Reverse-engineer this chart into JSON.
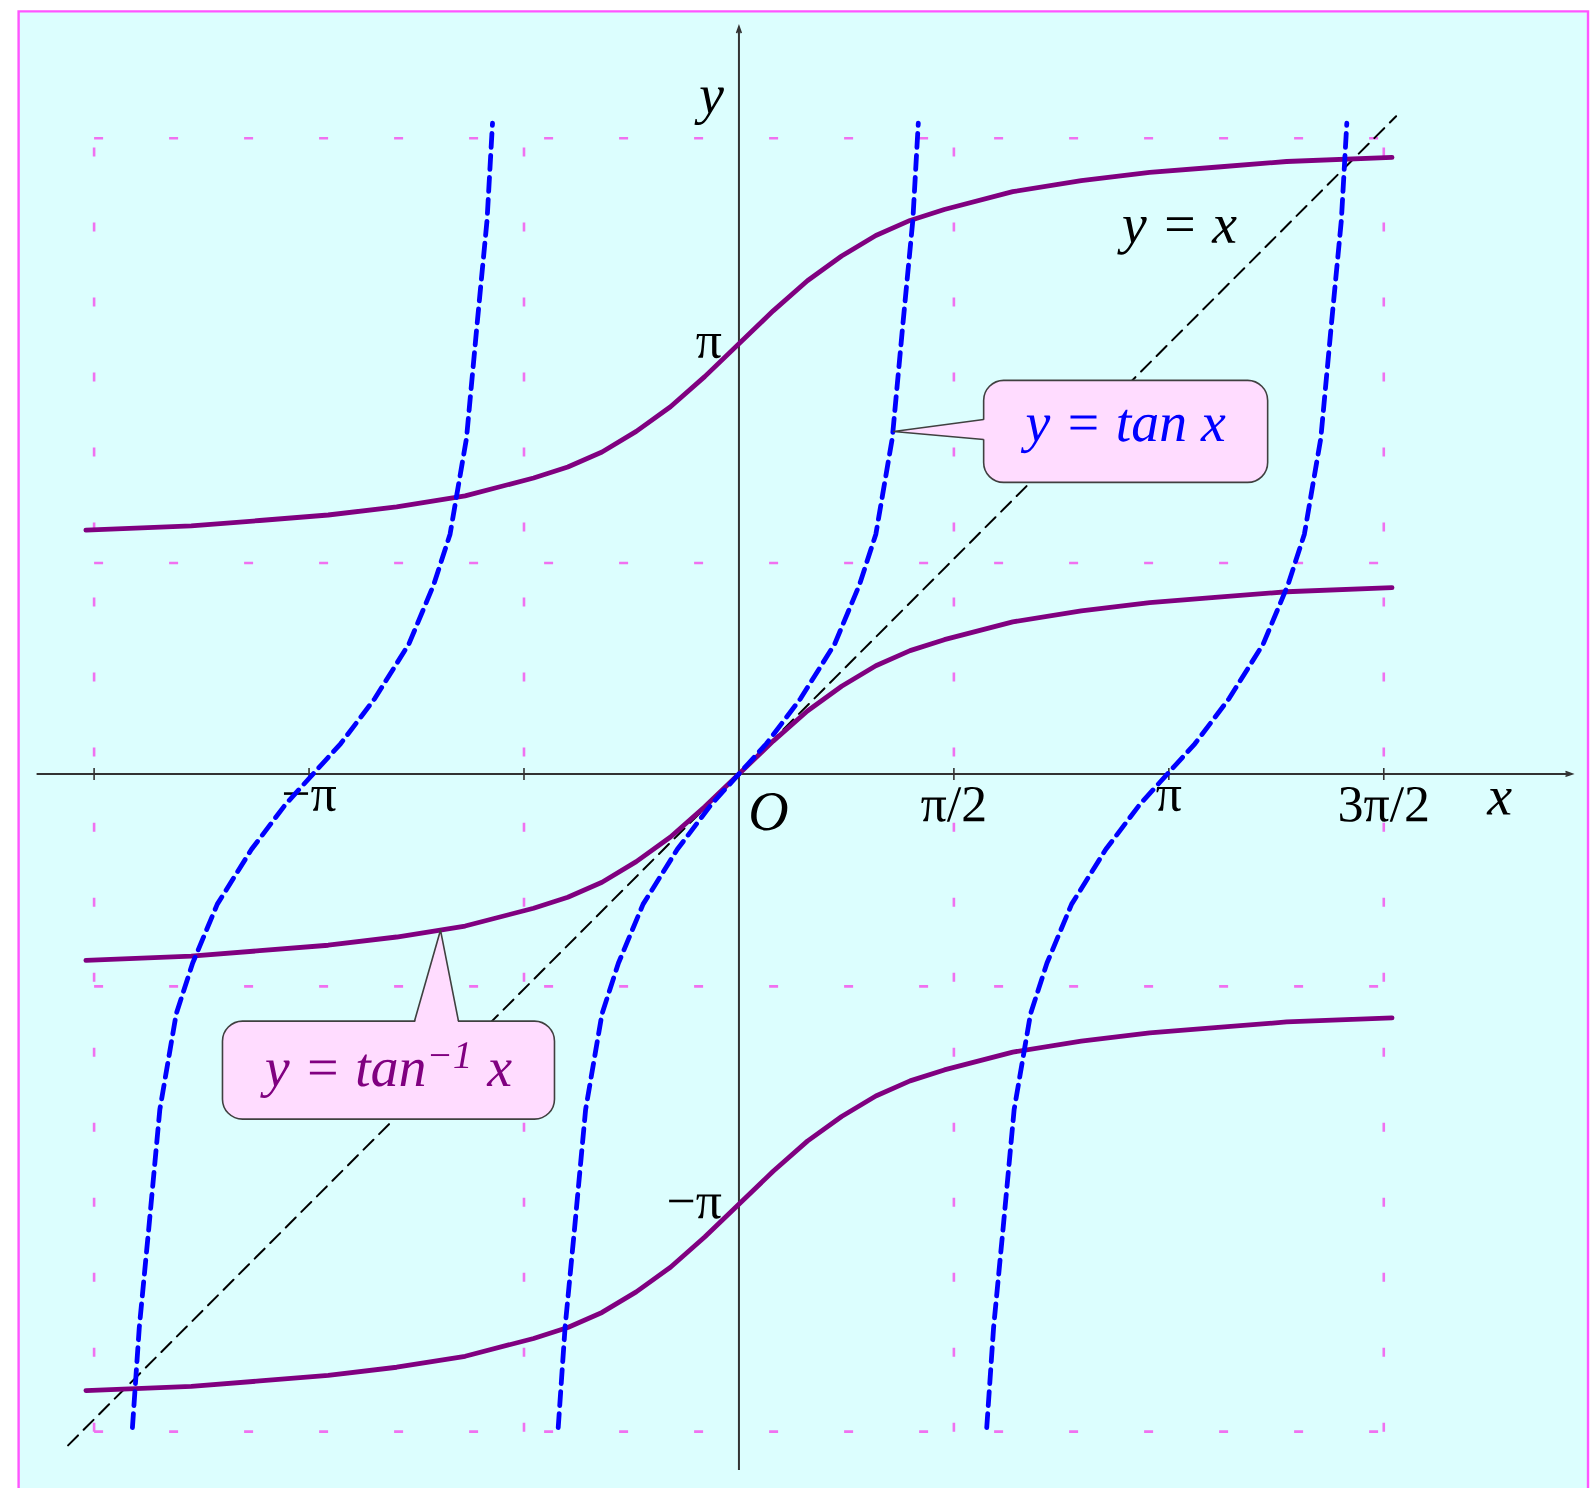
{
  "chart_data": {
    "type": "line",
    "xlabel": "x",
    "ylabel": "y",
    "xlim": [
      -5.13,
      6.06
    ],
    "ylim": [
      -5.08,
      5.43
    ],
    "xticks": [
      {
        "value": -4.71,
        "label": null
      },
      {
        "value": -3.14,
        "label": "−π"
      },
      {
        "value": -1.57,
        "label": null
      },
      {
        "value": 1.57,
        "label": "π/2"
      },
      {
        "value": 3.14,
        "label": "π"
      },
      {
        "value": 4.71,
        "label": "3π/2"
      }
    ],
    "yticks": [
      {
        "value": 3.14,
        "label": "π"
      },
      {
        "value": -3.14,
        "label": "−π"
      }
    ],
    "series": [
      {
        "color": "#000000",
        "line_style": "dashed",
        "x": [
          -4.9,
          4.8
        ],
        "values": [
          -4.9,
          4.8
        ]
      },
      {
        "color": "#800080",
        "line_style": "solid",
        "x": [
          -4.77,
          -4,
          -3.5,
          -3,
          -2.5,
          -2,
          -1.5,
          -1.25,
          -1,
          -0.75,
          -0.5,
          -0.25,
          0,
          0.25,
          0.5,
          0.75,
          1,
          1.25,
          1.5,
          2,
          2.5,
          3,
          3.5,
          4,
          4.77
        ],
        "values": [
          1.78,
          1.81,
          1.85,
          1.89,
          1.95,
          2.03,
          2.16,
          2.24,
          2.35,
          2.5,
          2.68,
          2.9,
          3.14,
          3.38,
          3.6,
          3.78,
          3.93,
          4.04,
          4.12,
          4.25,
          4.33,
          4.39,
          4.43,
          4.47,
          4.5
        ]
      },
      {
        "color": "#800080",
        "line_style": "solid",
        "x": [
          -4.77,
          -4,
          -3.5,
          -3,
          -2.5,
          -2,
          -1.5,
          -1.25,
          -1,
          -0.75,
          -0.5,
          -0.25,
          0,
          0.25,
          0.5,
          0.75,
          1,
          1.25,
          1.5,
          2,
          2.5,
          3,
          3.5,
          4,
          4.77
        ],
        "values": [
          -1.36,
          -1.33,
          -1.29,
          -1.25,
          -1.19,
          -1.11,
          -0.98,
          -0.9,
          -0.79,
          -0.64,
          -0.46,
          -0.24,
          0,
          0.24,
          0.46,
          0.64,
          0.79,
          0.9,
          0.98,
          1.11,
          1.19,
          1.25,
          1.29,
          1.33,
          1.36
        ]
      },
      {
        "color": "#800080",
        "line_style": "solid",
        "x": [
          -4.77,
          -4,
          -3.5,
          -3,
          -2.5,
          -2,
          -1.5,
          -1.25,
          -1,
          -0.75,
          -0.5,
          -0.25,
          0,
          0.25,
          0.5,
          0.75,
          1,
          1.25,
          1.5,
          2,
          2.5,
          3,
          3.5,
          4,
          4.77
        ],
        "values": [
          -4.5,
          -4.47,
          -4.43,
          -4.39,
          -4.33,
          -4.25,
          -4.12,
          -4.04,
          -3.93,
          -3.78,
          -3.6,
          -3.38,
          -3.14,
          -2.9,
          -2.68,
          -2.5,
          -2.35,
          -2.24,
          -2.16,
          -2.03,
          -1.95,
          -1.89,
          -1.85,
          -1.81,
          -1.78
        ]
      },
      {
        "color": "#0000ff",
        "line_style": "dashed",
        "x": [
          -4.43,
          -4.38,
          -4.31,
          -4.23,
          -4.11,
          -3.99,
          -3.81,
          -3.56,
          -3.31,
          -3.11,
          -2.91,
          -2.66,
          -2.41,
          -2.23,
          -2.11,
          -1.99,
          -1.91,
          -1.84,
          -1.8,
          -1.57,
          -1.32,
          -1.27,
          -1.2,
          -1.12,
          -1.0,
          -0.88,
          -0.7,
          -0.45,
          -0.2,
          0,
          0.2,
          0.45,
          0.7,
          0.88,
          1.0,
          1.12,
          1.2,
          1.27,
          1.31,
          1.57,
          1.81,
          1.86,
          1.93,
          2.01,
          2.13,
          2.25,
          2.43,
          2.68,
          2.93,
          3.13,
          3.33,
          3.58,
          3.83,
          4.01,
          4.13,
          4.25,
          4.33,
          4.4,
          4.44
        ],
        "values": [
          -4.77,
          -4.04,
          -3.31,
          -2.45,
          -1.75,
          -1.38,
          -0.95,
          -0.55,
          -0.22,
          0,
          0.22,
          0.55,
          0.95,
          1.38,
          1.75,
          2.45,
          3.31,
          4.04,
          4.75,
          null,
          -4.77,
          -4.04,
          -3.31,
          -2.45,
          -1.75,
          -1.38,
          -0.95,
          -0.55,
          -0.22,
          0,
          0.22,
          0.55,
          0.95,
          1.38,
          1.75,
          2.45,
          3.31,
          4.04,
          4.75,
          null,
          -4.77,
          -4.04,
          -3.31,
          -2.45,
          -1.75,
          -1.38,
          -0.95,
          -0.55,
          -0.22,
          0,
          0.22,
          0.55,
          0.95,
          1.38,
          1.75,
          2.45,
          3.31,
          4.04,
          4.75
        ]
      }
    ],
    "ref_lines": [
      {
        "axis": "x",
        "value": -4.71,
        "color": "#f070f0",
        "line_style": "dashed"
      },
      {
        "axis": "x",
        "value": -1.57,
        "color": "#f070f0",
        "line_style": "dashed"
      },
      {
        "axis": "x",
        "value": 1.57,
        "color": "#f070f0",
        "line_style": "dashed"
      },
      {
        "axis": "x",
        "value": 4.71,
        "color": "#f070f0",
        "line_style": "dashed"
      },
      {
        "axis": "y",
        "value": 4.64,
        "color": "#f070f0",
        "line_style": "dashed"
      },
      {
        "axis": "y",
        "value": 1.54,
        "color": "#f070f0",
        "line_style": "dashed"
      },
      {
        "axis": "y",
        "value": -1.55,
        "color": "#f070f0",
        "line_style": "dashed"
      },
      {
        "axis": "y",
        "value": -4.8,
        "color": "#f070f0",
        "line_style": "dashed"
      }
    ],
    "annotations": [
      "y = x",
      {
        "text": "y = tan x",
        "x": 1.13,
        "y": 2.5
      },
      {
        "text": "y = tan$^{−1}$ x",
        "x": -2.18,
        "y": -1.14
      },
      {
        "text": "O",
        "x": 0,
        "y": 0
      }
    ]
  }
}
